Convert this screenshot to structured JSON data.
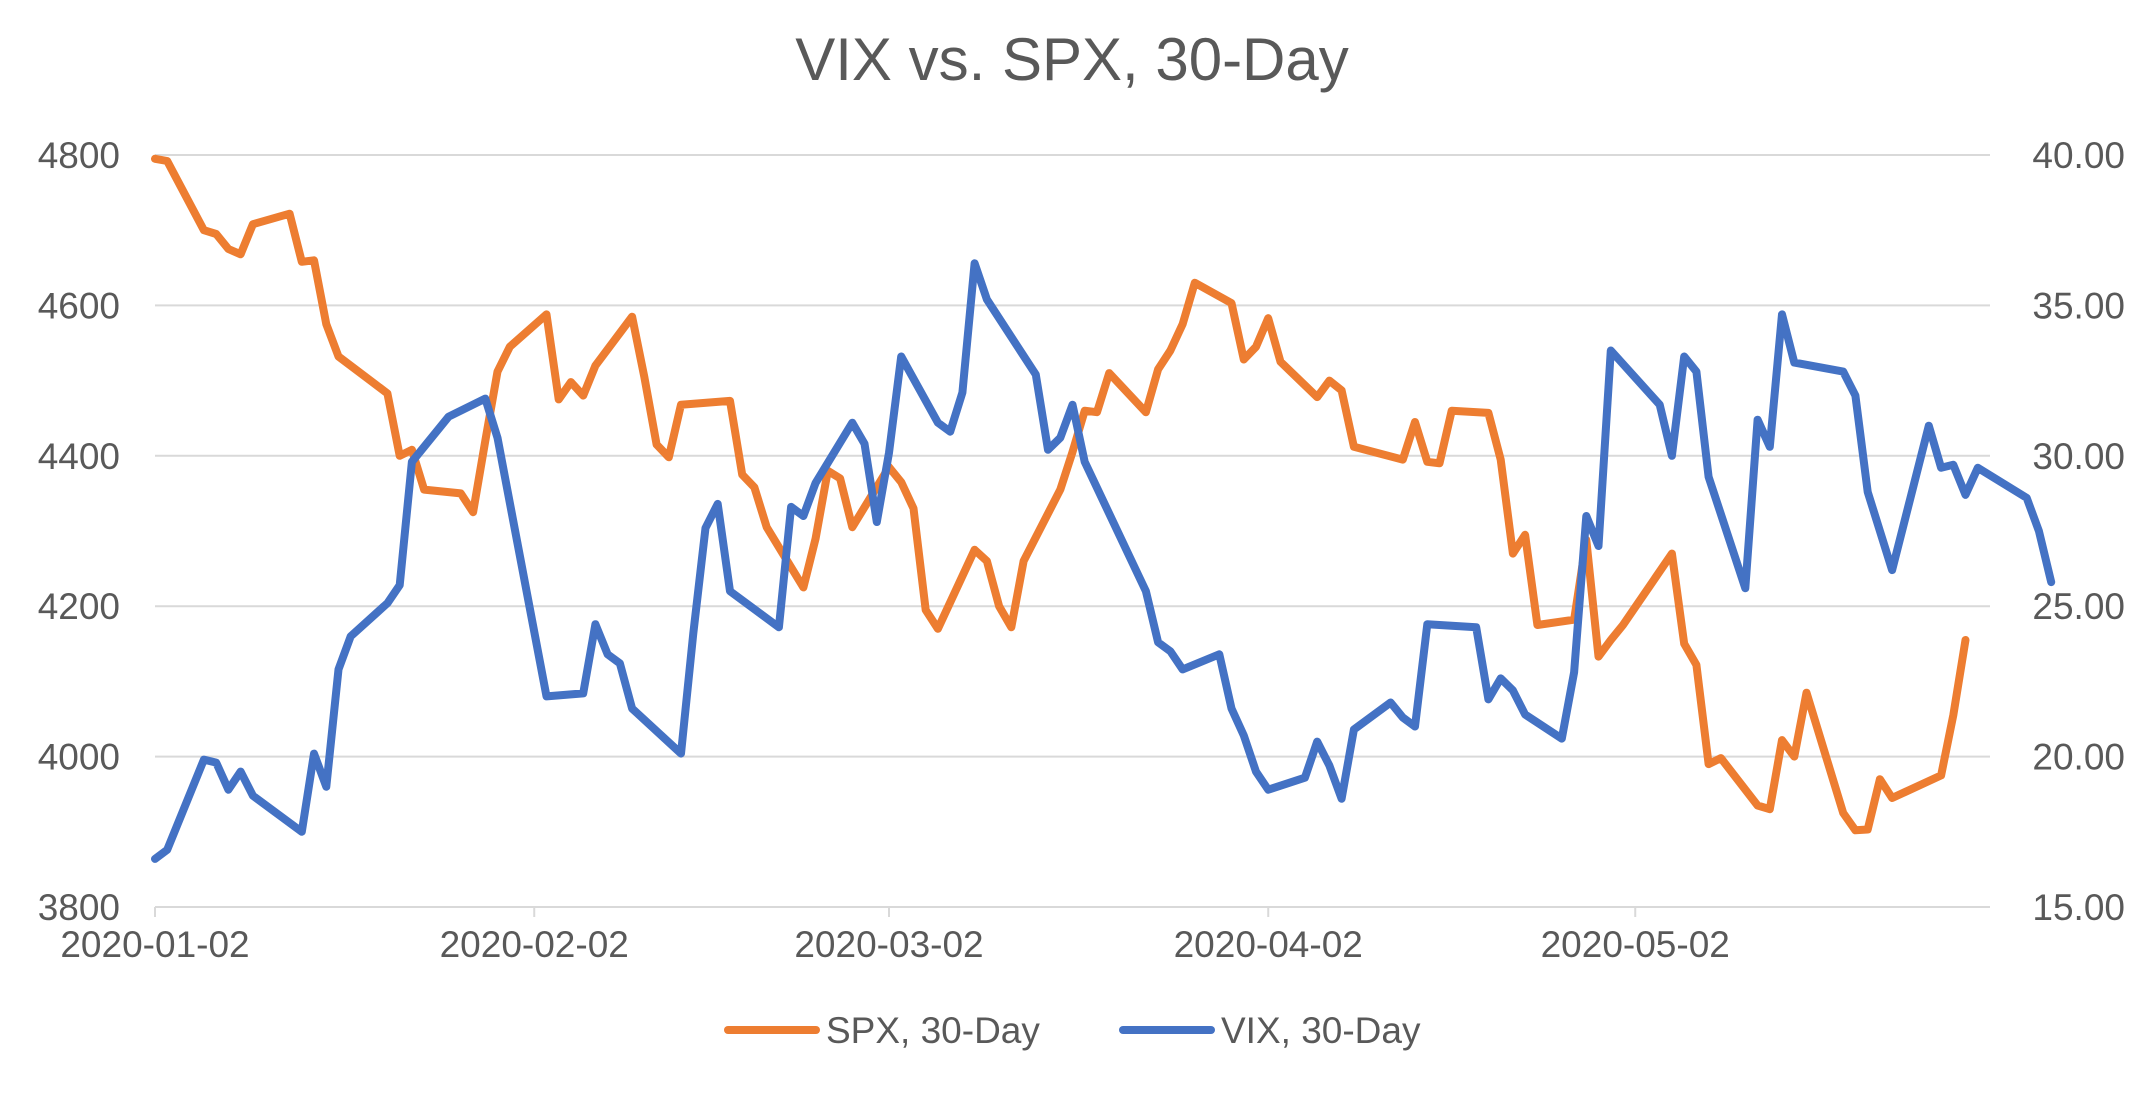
{
  "chart_data": {
    "type": "line",
    "title": "VIX vs. SPX, 30-Day",
    "x_type": "date",
    "xlim": [
      "2020-01-02",
      "2020-05-31"
    ],
    "x_ticks": [
      "2020-01-02",
      "2020-02-02",
      "2020-03-02",
      "2020-04-02",
      "2020-05-02"
    ],
    "y_left": {
      "lim": [
        3800,
        4800
      ],
      "ticks": [
        "3800",
        "4000",
        "4200",
        "4400",
        "4600",
        "4800"
      ]
    },
    "y_right": {
      "lim": [
        15,
        40
      ],
      "ticks": [
        "15.00",
        "20.00",
        "25.00",
        "30.00",
        "35.00",
        "40.00"
      ]
    },
    "grid": true,
    "legend_position": "bottom",
    "series": [
      {
        "name": "SPX, 30-Day",
        "axis": "left",
        "color": "#ED7D31",
        "points": [
          [
            "2020-01-02",
            4795
          ],
          [
            "2020-01-03",
            4792
          ],
          [
            "2020-01-06",
            4700
          ],
          [
            "2020-01-07",
            4695
          ],
          [
            "2020-01-08",
            4675
          ],
          [
            "2020-01-09",
            4668
          ],
          [
            "2020-01-10",
            4708
          ],
          [
            "2020-01-13",
            4722
          ],
          [
            "2020-01-14",
            4658
          ],
          [
            "2020-01-15",
            4660
          ],
          [
            "2020-01-16",
            4575
          ],
          [
            "2020-01-17",
            4532
          ],
          [
            "2020-01-21",
            4483
          ],
          [
            "2020-01-22",
            4400
          ],
          [
            "2020-01-23",
            4408
          ],
          [
            "2020-01-24",
            4355
          ],
          [
            "2020-01-27",
            4350
          ],
          [
            "2020-01-28",
            4325
          ],
          [
            "2020-01-29",
            4420
          ],
          [
            "2020-01-30",
            4512
          ],
          [
            "2020-01-31",
            4545
          ],
          [
            "2020-02-03",
            4588
          ],
          [
            "2020-02-04",
            4475
          ],
          [
            "2020-02-05",
            4498
          ],
          [
            "2020-02-06",
            4480
          ],
          [
            "2020-02-07",
            4520
          ],
          [
            "2020-02-10",
            4585
          ],
          [
            "2020-02-11",
            4505
          ],
          [
            "2020-02-12",
            4415
          ],
          [
            "2020-02-13",
            4398
          ],
          [
            "2020-02-14",
            4468
          ],
          [
            "2020-02-18",
            4473
          ],
          [
            "2020-02-19",
            4375
          ],
          [
            "2020-02-20",
            4358
          ],
          [
            "2020-02-21",
            4305
          ],
          [
            "2020-02-24",
            4225
          ],
          [
            "2020-02-25",
            4290
          ],
          [
            "2020-02-26",
            4380
          ],
          [
            "2020-02-27",
            4370
          ],
          [
            "2020-02-28",
            4305
          ],
          [
            "2020-03-02",
            4385
          ],
          [
            "2020-03-03",
            4365
          ],
          [
            "2020-03-04",
            4330
          ],
          [
            "2020-03-05",
            4195
          ],
          [
            "2020-03-06",
            4170
          ],
          [
            "2020-03-09",
            4275
          ],
          [
            "2020-03-10",
            4260
          ],
          [
            "2020-03-11",
            4200
          ],
          [
            "2020-03-12",
            4172
          ],
          [
            "2020-03-13",
            4260
          ],
          [
            "2020-03-16",
            4355
          ],
          [
            "2020-03-17",
            4405
          ],
          [
            "2020-03-18",
            4460
          ],
          [
            "2020-03-19",
            4458
          ],
          [
            "2020-03-20",
            4510
          ],
          [
            "2020-03-23",
            4458
          ],
          [
            "2020-03-24",
            4515
          ],
          [
            "2020-03-25",
            4540
          ],
          [
            "2020-03-26",
            4575
          ],
          [
            "2020-03-27",
            4630
          ],
          [
            "2020-03-30",
            4603
          ],
          [
            "2020-03-31",
            4528
          ],
          [
            "2020-04-01",
            4545
          ],
          [
            "2020-04-02",
            4583
          ],
          [
            "2020-04-03",
            4525
          ],
          [
            "2020-04-06",
            4478
          ],
          [
            "2020-04-07",
            4500
          ],
          [
            "2020-04-08",
            4487
          ],
          [
            "2020-04-09",
            4412
          ],
          [
            "2020-04-13",
            4395
          ],
          [
            "2020-04-14",
            4445
          ],
          [
            "2020-04-15",
            4392
          ],
          [
            "2020-04-16",
            4390
          ],
          [
            "2020-04-17",
            4460
          ],
          [
            "2020-04-20",
            4457
          ],
          [
            "2020-04-21",
            4395
          ],
          [
            "2020-04-22",
            4270
          ],
          [
            "2020-04-23",
            4295
          ],
          [
            "2020-04-24",
            4175
          ],
          [
            "2020-04-27",
            4182
          ],
          [
            "2020-04-28",
            4288
          ],
          [
            "2020-04-29",
            4133
          ],
          [
            "2020-04-30",
            4155
          ],
          [
            "2020-05-01",
            4175
          ],
          [
            "2020-05-05",
            4270
          ],
          [
            "2020-05-06",
            4150
          ],
          [
            "2020-05-07",
            4122
          ],
          [
            "2020-05-08",
            3990
          ],
          [
            "2020-05-09",
            3998
          ],
          [
            "2020-05-12",
            3935
          ],
          [
            "2020-05-13",
            3930
          ],
          [
            "2020-05-14",
            4022
          ],
          [
            "2020-05-15",
            4000
          ],
          [
            "2020-05-16",
            4085
          ],
          [
            "2020-05-19",
            3925
          ],
          [
            "2020-05-20",
            3902
          ],
          [
            "2020-05-21",
            3903
          ],
          [
            "2020-05-22",
            3970
          ],
          [
            "2020-05-23",
            3945
          ],
          [
            "2020-05-27",
            3975
          ],
          [
            "2020-05-28",
            4055
          ],
          [
            "2020-05-29",
            4155
          ]
        ]
      },
      {
        "name": "VIX, 30-Day",
        "axis": "right",
        "color": "#4472C4",
        "points": [
          [
            "2020-01-02",
            16.6
          ],
          [
            "2020-01-03",
            16.9
          ],
          [
            "2020-01-06",
            19.9
          ],
          [
            "2020-01-07",
            19.8
          ],
          [
            "2020-01-08",
            18.9
          ],
          [
            "2020-01-09",
            19.5
          ],
          [
            "2020-01-10",
            18.7
          ],
          [
            "2020-01-14",
            17.5
          ],
          [
            "2020-01-15",
            20.1
          ],
          [
            "2020-01-16",
            19.0
          ],
          [
            "2020-01-17",
            22.9
          ],
          [
            "2020-01-18",
            24.0
          ],
          [
            "2020-01-21",
            25.1
          ],
          [
            "2020-01-22",
            25.7
          ],
          [
            "2020-01-23",
            29.8
          ],
          [
            "2020-01-26",
            31.3
          ],
          [
            "2020-01-29",
            31.9
          ],
          [
            "2020-01-30",
            30.6
          ],
          [
            "2020-02-03",
            22.0
          ],
          [
            "2020-02-06",
            22.1
          ],
          [
            "2020-02-07",
            24.4
          ],
          [
            "2020-02-08",
            23.4
          ],
          [
            "2020-02-09",
            23.1
          ],
          [
            "2020-02-10",
            21.6
          ],
          [
            "2020-02-14",
            20.1
          ],
          [
            "2020-02-15",
            24.1
          ],
          [
            "2020-02-16",
            27.6
          ],
          [
            "2020-02-17",
            28.4
          ],
          [
            "2020-02-18",
            25.5
          ],
          [
            "2020-02-22",
            24.3
          ],
          [
            "2020-02-23",
            28.3
          ],
          [
            "2020-02-24",
            28.0
          ],
          [
            "2020-02-25",
            29.1
          ],
          [
            "2020-02-28",
            31.1
          ],
          [
            "2020-02-29",
            30.4
          ],
          [
            "2020-03-01",
            27.8
          ],
          [
            "2020-03-02",
            30.1
          ],
          [
            "2020-03-03",
            33.3
          ],
          [
            "2020-03-06",
            31.1
          ],
          [
            "2020-03-07",
            30.8
          ],
          [
            "2020-03-08",
            32.1
          ],
          [
            "2020-03-09",
            36.4
          ],
          [
            "2020-03-10",
            35.2
          ],
          [
            "2020-03-14",
            32.7
          ],
          [
            "2020-03-15",
            30.2
          ],
          [
            "2020-03-16",
            30.6
          ],
          [
            "2020-03-17",
            31.7
          ],
          [
            "2020-03-18",
            29.8
          ],
          [
            "2020-03-23",
            25.5
          ],
          [
            "2020-03-24",
            23.8
          ],
          [
            "2020-03-25",
            23.5
          ],
          [
            "2020-03-26",
            22.9
          ],
          [
            "2020-03-29",
            23.4
          ],
          [
            "2020-03-30",
            21.6
          ],
          [
            "2020-03-31",
            20.7
          ],
          [
            "2020-04-01",
            19.5
          ],
          [
            "2020-04-02",
            18.9
          ],
          [
            "2020-04-05",
            19.3
          ],
          [
            "2020-04-06",
            20.5
          ],
          [
            "2020-04-07",
            19.7
          ],
          [
            "2020-04-08",
            18.6
          ],
          [
            "2020-04-09",
            20.9
          ],
          [
            "2020-04-12",
            21.8
          ],
          [
            "2020-04-13",
            21.3
          ],
          [
            "2020-04-14",
            21.0
          ],
          [
            "2020-04-15",
            24.4
          ],
          [
            "2020-04-19",
            24.3
          ],
          [
            "2020-04-20",
            21.9
          ],
          [
            "2020-04-21",
            22.6
          ],
          [
            "2020-04-22",
            22.2
          ],
          [
            "2020-04-23",
            21.4
          ],
          [
            "2020-04-26",
            20.6
          ],
          [
            "2020-04-27",
            22.8
          ],
          [
            "2020-04-28",
            28.0
          ],
          [
            "2020-04-29",
            27.0
          ],
          [
            "2020-04-30",
            33.5
          ],
          [
            "2020-05-04",
            31.7
          ],
          [
            "2020-05-05",
            30.0
          ],
          [
            "2020-05-06",
            33.3
          ],
          [
            "2020-05-07",
            32.8
          ],
          [
            "2020-05-08",
            29.3
          ],
          [
            "2020-05-11",
            25.6
          ],
          [
            "2020-05-12",
            31.2
          ],
          [
            "2020-05-13",
            30.3
          ],
          [
            "2020-05-14",
            34.7
          ],
          [
            "2020-05-15",
            33.1
          ],
          [
            "2020-05-19",
            32.8
          ],
          [
            "2020-05-20",
            32.0
          ],
          [
            "2020-05-21",
            28.8
          ],
          [
            "2020-05-23",
            26.2
          ],
          [
            "2020-05-26",
            31.0
          ],
          [
            "2020-05-27",
            29.6
          ],
          [
            "2020-05-28",
            29.7
          ],
          [
            "2020-05-29",
            28.7
          ],
          [
            "2020-05-30",
            29.6
          ],
          [
            "2020-06-03",
            28.6
          ],
          [
            "2020-06-04",
            27.5
          ],
          [
            "2020-06-05",
            25.8
          ]
        ]
      }
    ]
  }
}
